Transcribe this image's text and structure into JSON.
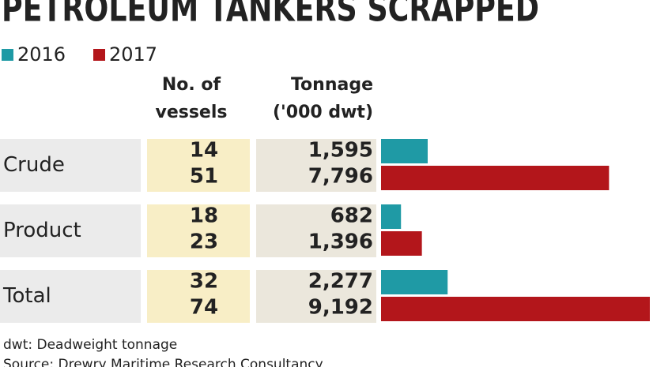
{
  "chart_data": {
    "type": "bar",
    "orientation": "horizontal",
    "title": "PETROLEUM TANKERS SCRAPPED",
    "column_headers": {
      "vessels": [
        "No. of",
        "vessels"
      ],
      "tonnage": [
        "Tonnage",
        "('000 dwt)"
      ]
    },
    "categories": [
      "Crude",
      "Product",
      "Total"
    ],
    "series": [
      {
        "name": "2016",
        "color": "#1f9aa5",
        "vessels": [
          14,
          18,
          32
        ],
        "values": [
          1595,
          682,
          2277
        ],
        "value_labels": [
          "1,595",
          "682",
          "2,277"
        ]
      },
      {
        "name": "2017",
        "color": "#b3161b",
        "vessels": [
          51,
          23,
          74
        ],
        "values": [
          7796,
          1396,
          9192
        ],
        "value_labels": [
          "7,796",
          "1,396",
          "9,192"
        ]
      }
    ],
    "notes": [
      "dwt: Deadweight tonnage",
      "Source: Drewry Maritime Research Consultancy"
    ]
  }
}
